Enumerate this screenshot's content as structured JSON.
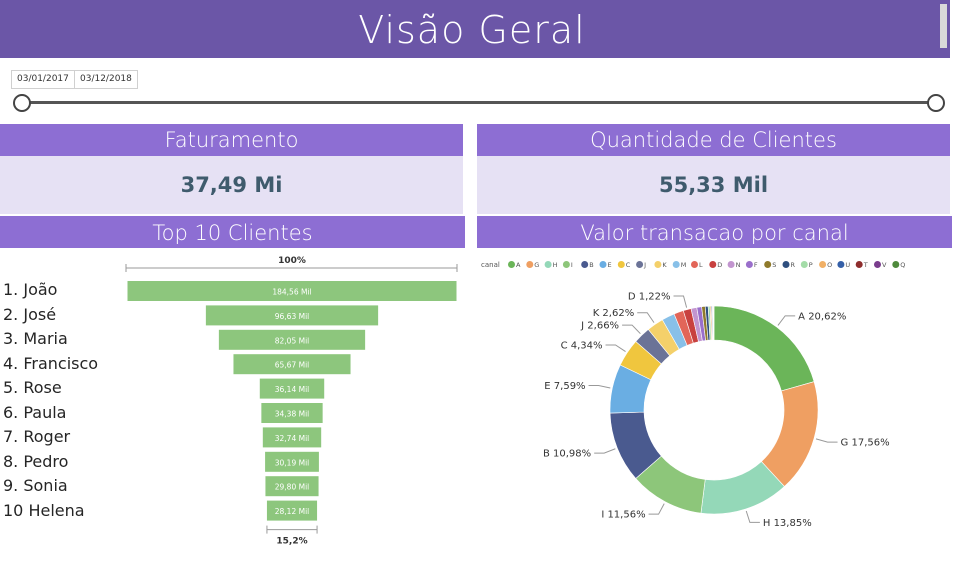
{
  "header": {
    "title": "Visão Geral"
  },
  "date_range": {
    "start": "03/01/2017",
    "end": "03/12/2018"
  },
  "kpis": {
    "revenue": {
      "label": "Faturamento",
      "value": "37,49 Mi"
    },
    "clients": {
      "label": "Quantidade de Clientes",
      "value": "55,33 Mil"
    }
  },
  "top_clients": {
    "title": "Top 10 Clientes",
    "names": [
      "1.  João",
      "2. José",
      "3. Maria",
      "4. Francisco",
      "5. Rose",
      "6. Paula",
      "7. Roger",
      "8. Pedro",
      "9. Sonia",
      "10 Helena"
    ],
    "top_pct_label": "100%",
    "bottom_pct_label": "15,2%"
  },
  "channel": {
    "title": "Valor transacao por canal",
    "legend_label": "canal"
  },
  "colors": {
    "title_bar": "#6b56a7",
    "card_header": "#8d6ed3",
    "card_body": "#e6e1f4",
    "kpi_value": "#3f5b6d",
    "funnel_bar": "#8dc67d"
  },
  "chart_data": [
    {
      "type": "bar",
      "subtype": "funnel",
      "title": "Top 10 Clientes",
      "categories": [
        "João",
        "José",
        "Maria",
        "Francisco",
        "Rose",
        "Paula",
        "Roger",
        "Pedro",
        "Sonia",
        "Helena"
      ],
      "values": [
        184.56,
        96.63,
        82.05,
        65.67,
        36.14,
        34.38,
        32.74,
        30.19,
        29.8,
        28.12
      ],
      "value_labels": [
        "184,56 Mil",
        "96,63 Mil",
        "82,05 Mil",
        "65,67 Mil",
        "36,14 Mil",
        "34,38 Mil",
        "32,74 Mil",
        "30,19 Mil",
        "29,80 Mil",
        "28,12 Mil"
      ],
      "unit": "Mil",
      "top_label": "100%",
      "bottom_label": "15,2%"
    },
    {
      "type": "pie",
      "subtype": "donut",
      "title": "Valor transacao por canal",
      "legend_title": "canal",
      "legend_position": "top-left",
      "legend": [
        "A",
        "G",
        "H",
        "I",
        "B",
        "E",
        "C",
        "J",
        "K",
        "M",
        "L",
        "D",
        "N",
        "F",
        "S",
        "R",
        "P",
        "O",
        "U",
        "T",
        "V",
        "Q"
      ],
      "slices": [
        {
          "name": "A",
          "value": 20.62,
          "label": "A 20,62%",
          "color": "#6bb559"
        },
        {
          "name": "G",
          "value": 17.56,
          "label": "G 17,56%",
          "color": "#ef9f62"
        },
        {
          "name": "H",
          "value": 13.85,
          "label": "H 13,85%",
          "color": "#94d8b8"
        },
        {
          "name": "I",
          "value": 11.56,
          "label": "I 11,56%",
          "color": "#8dc67a"
        },
        {
          "name": "B",
          "value": 10.98,
          "label": "B 10,98%",
          "color": "#4a5a8f"
        },
        {
          "name": "E",
          "value": 7.59,
          "label": "E 7,59%",
          "color": "#6aaee3"
        },
        {
          "name": "C",
          "value": 4.34,
          "label": "C 4,34%",
          "color": "#f0c63e"
        },
        {
          "name": "J",
          "value": 2.66,
          "label": "J 2,66%",
          "color": "#6b7397"
        },
        {
          "name": "K",
          "value": 2.62,
          "label": "K 2,62%",
          "color": "#f4d06a"
        },
        {
          "name": "M",
          "value": 2.0,
          "label": "",
          "color": "#88c0e8"
        },
        {
          "name": "L",
          "value": 1.5,
          "label": "",
          "color": "#e26659"
        },
        {
          "name": "D",
          "value": 1.22,
          "label": "D 1,22%",
          "color": "#c8413f"
        },
        {
          "name": "N",
          "value": 0.9,
          "label": "",
          "color": "#c295cf"
        },
        {
          "name": "F",
          "value": 0.75,
          "label": "",
          "color": "#9a6fcb"
        },
        {
          "name": "S",
          "value": 0.55,
          "label": "",
          "color": "#8f7a2c"
        },
        {
          "name": "R",
          "value": 0.45,
          "label": "",
          "color": "#2f4f7f"
        },
        {
          "name": "P",
          "value": 0.3,
          "label": "",
          "color": "#a4dca8"
        },
        {
          "name": "O",
          "value": 0.2,
          "label": "",
          "color": "#f1b066"
        },
        {
          "name": "U",
          "value": 0.15,
          "label": "",
          "color": "#3560a8"
        },
        {
          "name": "T",
          "value": 0.1,
          "label": "",
          "color": "#8e2d2d"
        },
        {
          "name": "V",
          "value": 0.1,
          "label": "",
          "color": "#7a3d8d"
        },
        {
          "name": "Q",
          "value": 0.05,
          "label": "",
          "color": "#4f8a3c"
        }
      ]
    }
  ]
}
